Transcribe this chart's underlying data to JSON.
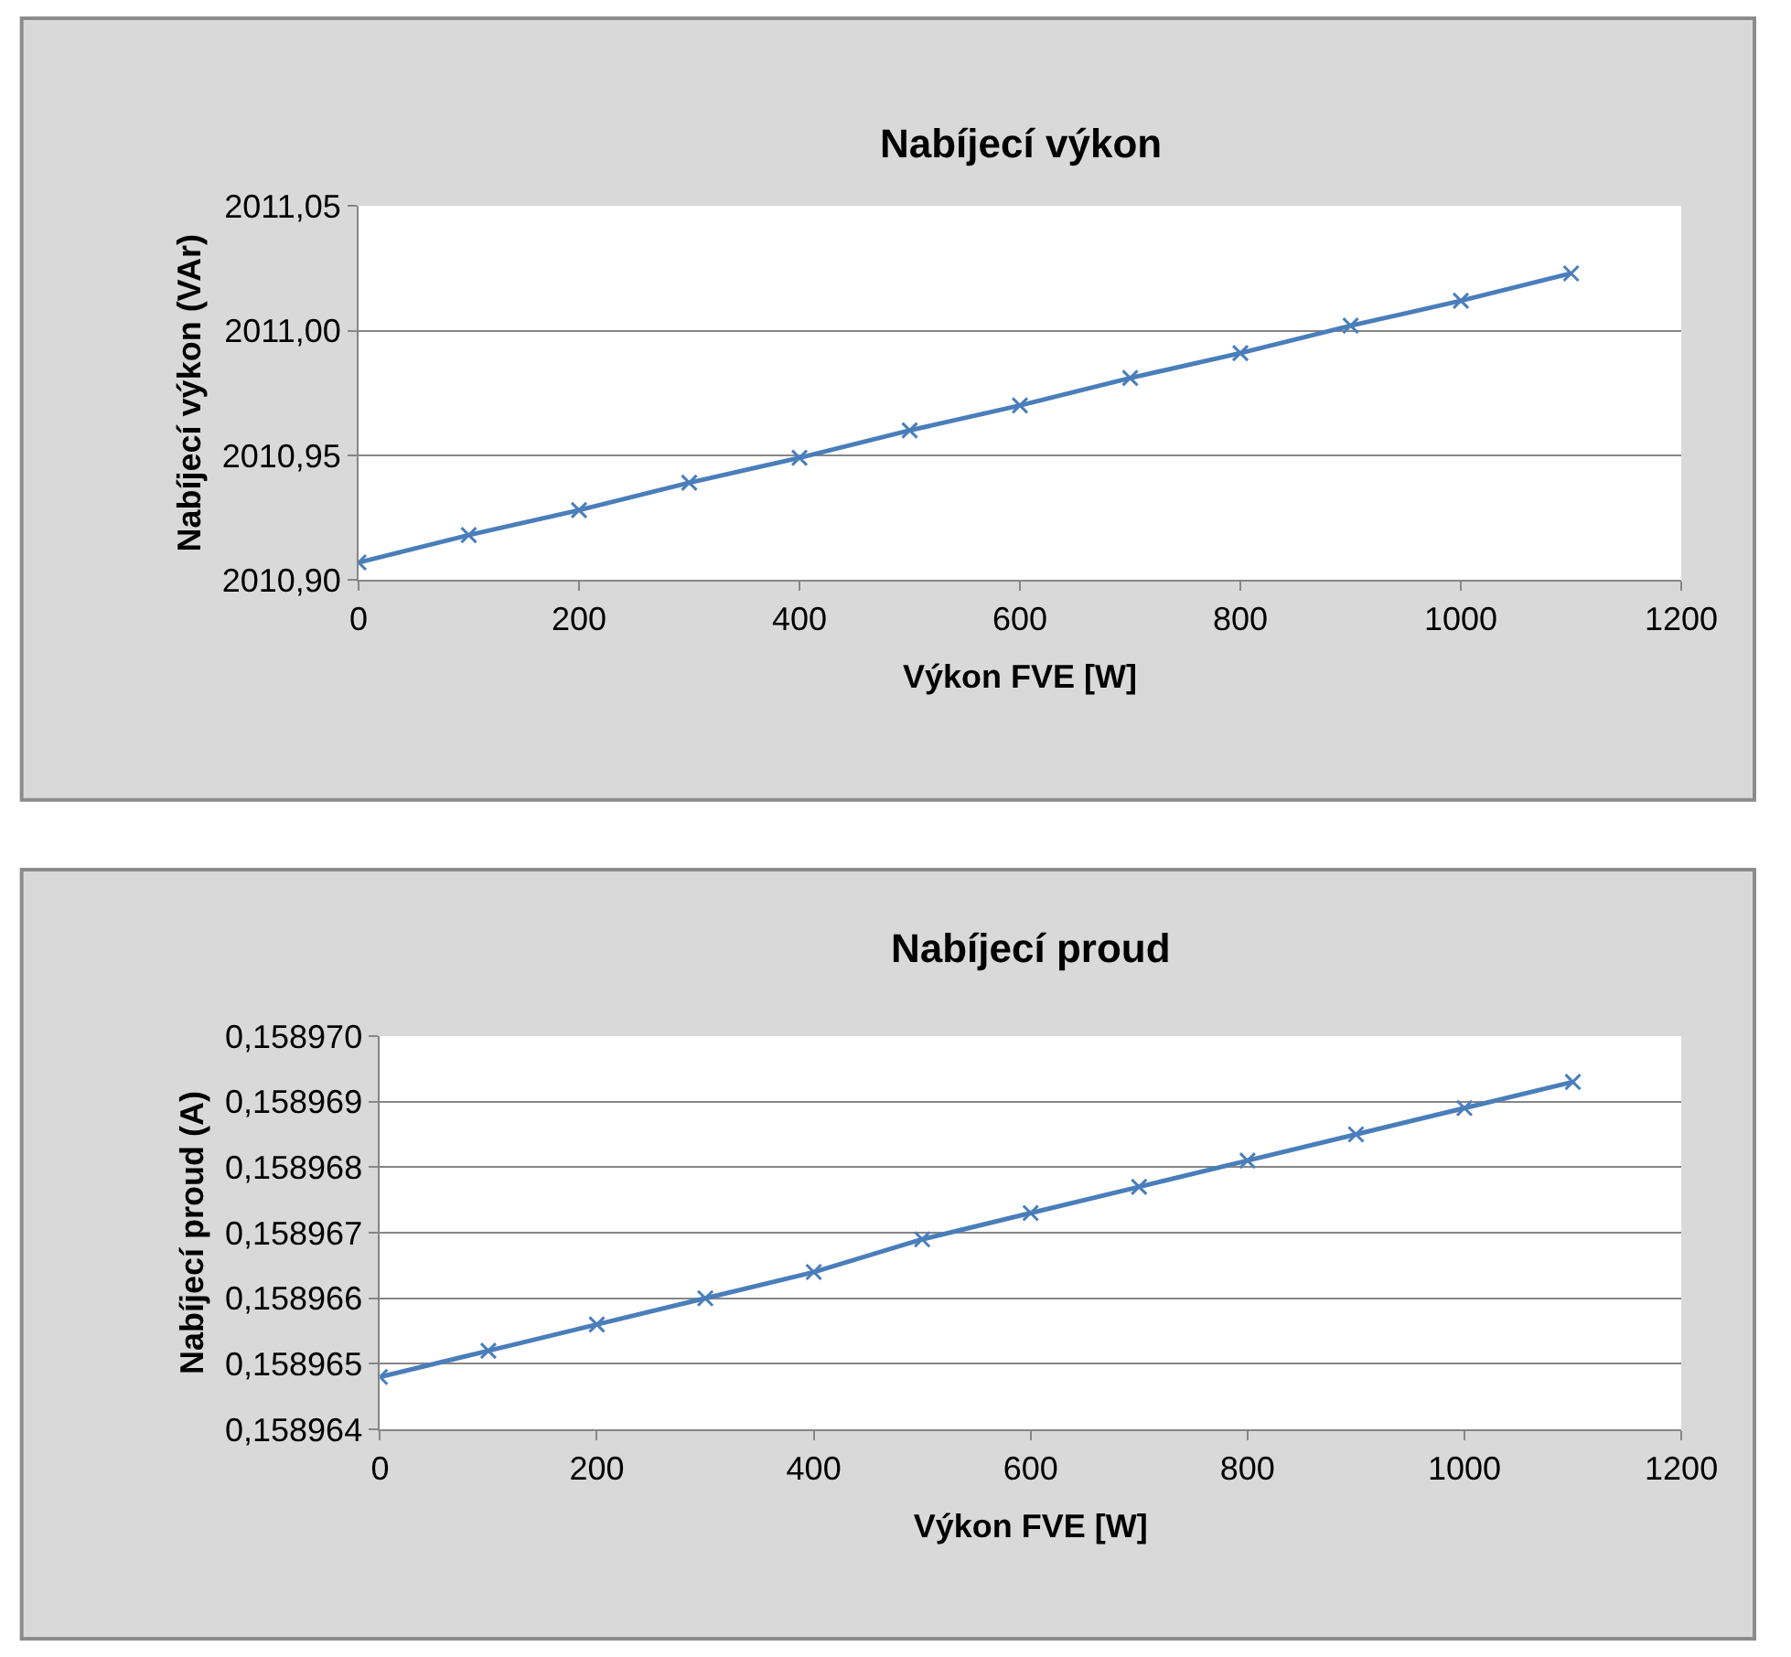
{
  "chart_data": [
    {
      "type": "line",
      "title": "Nabíjecí výkon",
      "xlabel": "Výkon FVE [W]",
      "ylabel": "Nabíjecí výkon (VAr)",
      "x": [
        0,
        100,
        200,
        300,
        400,
        500,
        600,
        700,
        800,
        900,
        1000,
        1100
      ],
      "series": [
        {
          "color": "#4a7ebb",
          "values": [
            2010.907,
            2010.918,
            2010.928,
            2010.939,
            2010.949,
            2010.96,
            2010.97,
            2010.981,
            2010.991,
            2011.002,
            2011.012,
            2011.023
          ]
        }
      ],
      "xlim": [
        0,
        1200
      ],
      "xticks": [
        0,
        200,
        400,
        600,
        800,
        1000,
        1200
      ],
      "ylim": [
        2010.9,
        2011.05
      ],
      "yticks": [
        {
          "value": 2010.9,
          "label": "2010,90"
        },
        {
          "value": 2010.95,
          "label": "2010,95"
        },
        {
          "value": 2011.0,
          "label": "2011,00"
        },
        {
          "value": 2011.05,
          "label": "2011,05"
        }
      ],
      "grid": "y",
      "marker": "cross",
      "line_style": "solid"
    },
    {
      "type": "line",
      "title": "Nabíjecí proud",
      "xlabel": "Výkon FVE [W]",
      "ylabel": "Nabíjecí proud (A)",
      "x": [
        0,
        100,
        200,
        300,
        400,
        500,
        600,
        700,
        800,
        900,
        1000,
        1100
      ],
      "series": [
        {
          "color": "#4a7ebb",
          "values": [
            0.1589648,
            0.1589652,
            0.1589656,
            0.158966,
            0.1589664,
            0.1589669,
            0.1589673,
            0.1589677,
            0.1589681,
            0.1589685,
            0.1589689,
            0.1589693
          ]
        }
      ],
      "xlim": [
        0,
        1200
      ],
      "xticks": [
        0,
        200,
        400,
        600,
        800,
        1000,
        1200
      ],
      "ylim": [
        0.158964,
        0.15897
      ],
      "yticks": [
        {
          "value": 0.158964,
          "label": "0,158964"
        },
        {
          "value": 0.158965,
          "label": "0,158965"
        },
        {
          "value": 0.158966,
          "label": "0,158966"
        },
        {
          "value": 0.158967,
          "label": "0,158967"
        },
        {
          "value": 0.158968,
          "label": "0,158968"
        },
        {
          "value": 0.158969,
          "label": "0,158969"
        },
        {
          "value": 0.15897,
          "label": "0,158970"
        }
      ],
      "grid": "y",
      "marker": "cross",
      "line_style": "solid"
    }
  ]
}
